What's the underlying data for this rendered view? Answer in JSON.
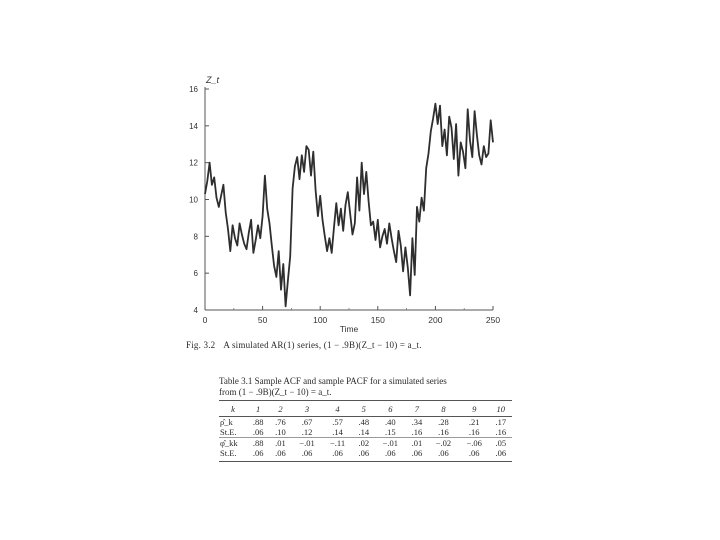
{
  "chart_data": {
    "type": "line",
    "ylabel": "Z_t",
    "xlabel": "Time",
    "xlim": [
      0,
      250
    ],
    "ylim": [
      4,
      16
    ],
    "xticks": [
      0,
      50,
      100,
      150,
      200,
      250
    ],
    "yticks": [
      4,
      6,
      8,
      10,
      12,
      14,
      16
    ],
    "series": [
      {
        "color": "#2e2e2e",
        "x": [
          0,
          2,
          4,
          6,
          8,
          10,
          12,
          14,
          16,
          18,
          20,
          22,
          24,
          26,
          28,
          30,
          32,
          34,
          36,
          38,
          40,
          42,
          44,
          46,
          48,
          50,
          52,
          54,
          56,
          58,
          60,
          62,
          64,
          66,
          68,
          70,
          72,
          74,
          76,
          78,
          80,
          82,
          84,
          86,
          88,
          90,
          92,
          94,
          96,
          98,
          100,
          102,
          104,
          106,
          108,
          110,
          112,
          114,
          116,
          118,
          120,
          122,
          124,
          126,
          128,
          130,
          132,
          134,
          136,
          138,
          140,
          142,
          144,
          146,
          148,
          150,
          152,
          154,
          156,
          158,
          160,
          162,
          164,
          166,
          168,
          170,
          172,
          174,
          176,
          178,
          180,
          182,
          184,
          186,
          188,
          190,
          192,
          194,
          196,
          198,
          200,
          202,
          204,
          206,
          208,
          210,
          212,
          214,
          216,
          218,
          220,
          222,
          224,
          226,
          228,
          230,
          232,
          234,
          236,
          238,
          240,
          242,
          244,
          246,
          248,
          250
        ],
        "y": [
          10.3,
          11.0,
          12.0,
          10.8,
          11.2,
          10.1,
          9.6,
          10.2,
          10.8,
          9.3,
          8.4,
          7.2,
          8.6,
          7.9,
          7.5,
          8.7,
          8.1,
          7.6,
          7.3,
          8.2,
          8.9,
          7.1,
          7.8,
          8.6,
          7.9,
          9.1,
          11.3,
          9.5,
          8.7,
          7.5,
          6.4,
          5.8,
          7.2,
          5.1,
          6.5,
          4.2,
          5.6,
          6.9,
          10.6,
          11.8,
          12.3,
          11.1,
          12.4,
          11.5,
          12.9,
          12.7,
          11.3,
          12.6,
          10.5,
          9.1,
          10.2,
          8.9,
          8.0,
          7.2,
          7.9,
          7.1,
          8.5,
          9.8,
          8.6,
          9.5,
          8.3,
          9.7,
          10.4,
          9.2,
          8.1,
          8.7,
          11.2,
          9.4,
          12.0,
          10.3,
          11.5,
          9.9,
          8.6,
          8.8,
          7.8,
          8.9,
          7.4,
          8.0,
          8.4,
          7.6,
          8.7,
          7.9,
          7.2,
          6.6,
          8.3,
          7.5,
          6.1,
          7.4,
          6.3,
          4.8,
          7.9,
          5.9,
          9.6,
          8.8,
          10.1,
          9.4,
          11.7,
          12.5,
          13.7,
          14.4,
          15.2,
          14.1,
          15.1,
          12.9,
          13.8,
          12.4,
          14.5,
          13.9,
          12.2,
          14.1,
          11.3,
          13.1,
          12.6,
          11.7,
          14.9,
          13.2,
          12.3,
          14.8,
          13.5,
          12.4,
          11.9,
          12.9,
          12.3,
          12.5,
          14.3,
          13.1
        ]
      }
    ]
  },
  "figure_caption": {
    "tag": "Fig. 3.2",
    "text": "A simulated AR(1) series, (1 − .9B)(Z_t − 10) = a_t."
  },
  "table": {
    "title_line1": "Table 3.1   Sample ACF and sample PACF for a simulated series",
    "title_line2": "from (1 − .9B)(Z_t − 10) = a_t.",
    "header_label": "k",
    "lags": [
      "1",
      "2",
      "3",
      "4",
      "5",
      "6",
      "7",
      "8",
      "9",
      "10"
    ],
    "rows": [
      {
        "label": "ρ̂_k",
        "values": [
          ".88",
          ".76",
          ".67",
          ".57",
          ".48",
          ".40",
          ".34",
          ".28",
          ".21",
          ".17"
        ]
      },
      {
        "label": "St.E.",
        "values": [
          ".06",
          ".10",
          ".12",
          ".14",
          ".14",
          ".15",
          ".16",
          ".16",
          ".16",
          ".16"
        ]
      },
      {
        "label": "φ̂_kk",
        "values": [
          ".88",
          ".01",
          "−.01",
          "−.11",
          ".02",
          "−.01",
          ".01",
          "−.02",
          "−.06",
          ".05"
        ]
      },
      {
        "label": "St.E.",
        "values": [
          ".06",
          ".06",
          ".06",
          ".06",
          ".06",
          ".06",
          ".06",
          ".06",
          ".06",
          ".06"
        ]
      }
    ]
  }
}
